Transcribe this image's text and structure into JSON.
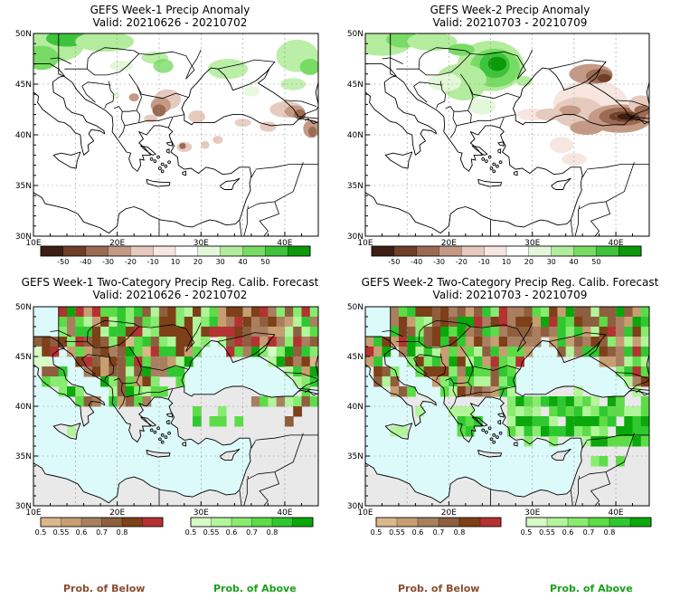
{
  "panels": [
    {
      "id": "w1-anom",
      "title": "GEFS Week-1 Precip Anomaly",
      "valid": "Valid: 20210626 - 20210702",
      "type": "anomaly"
    },
    {
      "id": "w2-anom",
      "title": "GEFS Week-2 Precip Anomaly",
      "valid": "Valid: 20210703 - 20210709",
      "type": "anomaly"
    },
    {
      "id": "w1-prob",
      "title": "GEFS Week-1 Two-Category Precip Reg. Calib. Forecast",
      "valid": "Valid: 20210626 - 20210702",
      "type": "prob"
    },
    {
      "id": "w2-prob",
      "title": "GEFS Week-2 Two-Category Precip Reg. Calib. Forecast",
      "valid": "Valid: 20210703 - 20210709",
      "type": "prob"
    }
  ],
  "axes": {
    "lat_labels": [
      "50N",
      "45N",
      "40N",
      "35N",
      "30N"
    ],
    "lon_labels": [
      "10E",
      "20E",
      "30E",
      "40E"
    ]
  },
  "anomaly_colorbar": {
    "colors": [
      "#3c1e14",
      "#6e3e28",
      "#9a6a52",
      "#c49a86",
      "#e6cabe",
      "#f6e6df",
      "#ffffff",
      "#e3f7d9",
      "#b4ec9d",
      "#78dc64",
      "#3ec43a",
      "#0a9a0a"
    ],
    "labels": [
      "-50",
      "-40",
      "-30",
      "-20",
      "-10",
      "10",
      "20",
      "30",
      "40",
      "50"
    ]
  },
  "prob_below_colorbar": {
    "colors": [
      "#d9b88c",
      "#c79e72",
      "#a97f60",
      "#8e5f3e",
      "#7e4018",
      "#b43232"
    ],
    "labels": [
      "0.5",
      "0.55",
      "0.6",
      "0.7",
      "0.8"
    ]
  },
  "prob_above_colorbar": {
    "colors": [
      "#d6fbc4",
      "#b2f59a",
      "#88ec70",
      "#5cdc46",
      "#30c830",
      "#0aa80a"
    ],
    "labels": [
      "0.5",
      "0.55",
      "0.6",
      "0.7",
      "0.8"
    ]
  },
  "legend": {
    "below": "Prob. of Below",
    "above": "Prob. of Above",
    "below_color": "#8b4a2e",
    "above_color": "#1aa01a"
  },
  "map_colors": {
    "land_prob": "#e9e9e9",
    "sea_prob": "#dcfafa",
    "background": "#ffffff"
  }
}
